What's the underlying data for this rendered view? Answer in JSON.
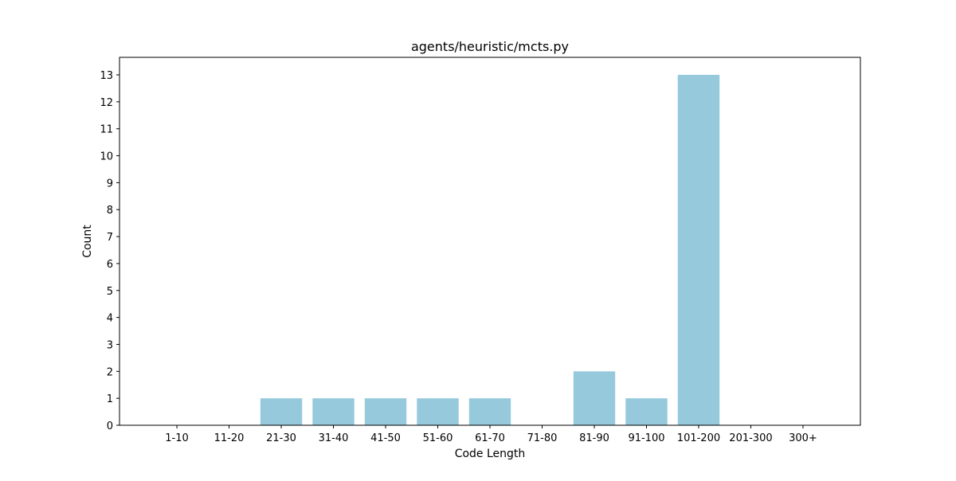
{
  "chart_data": {
    "type": "bar",
    "title": "agents/heuristic/mcts.py",
    "xlabel": "Code Length",
    "ylabel": "Count",
    "categories": [
      "1-10",
      "11-20",
      "21-30",
      "31-40",
      "41-50",
      "51-60",
      "61-70",
      "71-80",
      "81-90",
      "91-100",
      "101-200",
      "201-300",
      "300+"
    ],
    "values": [
      0,
      0,
      1,
      1,
      1,
      1,
      1,
      0,
      2,
      1,
      13,
      0,
      0
    ],
    "ylim": [
      0,
      13.65
    ],
    "yticks": [
      0,
      1,
      2,
      3,
      4,
      5,
      6,
      7,
      8,
      9,
      10,
      11,
      12,
      13
    ],
    "bar_color": "#96c9dc",
    "grid": false
  }
}
